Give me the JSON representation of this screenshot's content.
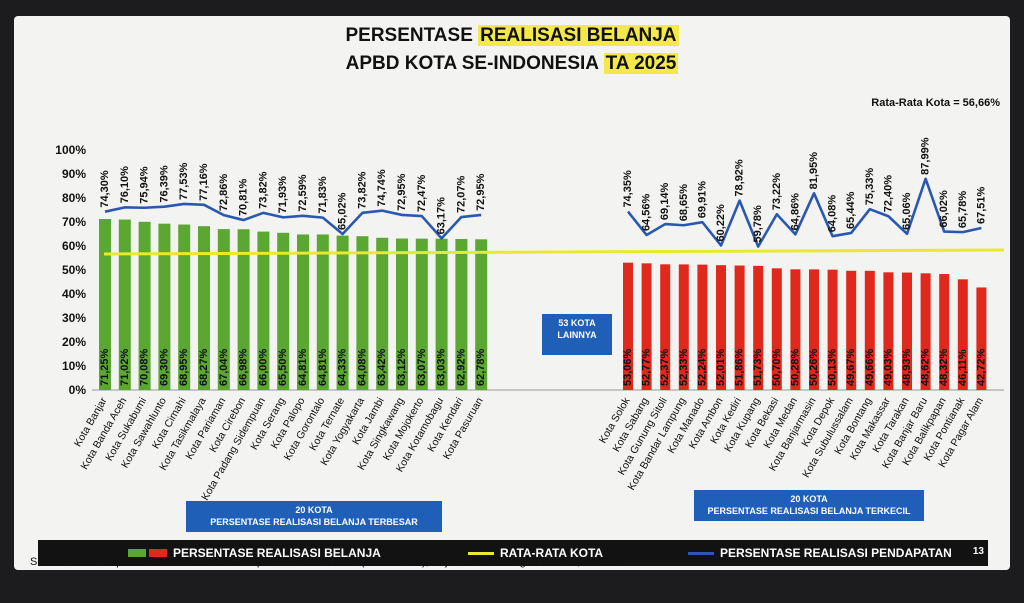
{
  "title": {
    "line1_a": "PERSENTASE ",
    "line1_b": "REALISASI BELANJA",
    "line2_a": "APBD KOTA SE-INDONESIA ",
    "line2_b": "TA 2025"
  },
  "average_note": "Rata-Rata Kota = 56,66%",
  "middle_label": {
    "line1": "53 KOTA",
    "line2": "LAINNYA"
  },
  "group_left_label": {
    "line1": "20 KOTA",
    "line2": "PERSENTASE REALISASI BELANJA TERBESAR"
  },
  "group_right_label": {
    "line1": "20 KOTA",
    "line2": "PERSENTASE REALISASI BELANJA TERKECIL"
  },
  "legend": {
    "bars": "PERSENTASE REALISASI BELANJA",
    "avg": "RATA-RATA KOTA",
    "line": "PERSENTASE REALISASI PENDAPATAN"
  },
  "page_number": "13",
  "source": "Sumber Data : Laporan 93 Pemkot untuk LRA per 17 Oktober 2025 (Data Diolah), Ditjen Bina Keuangan Daerah, TA 2025",
  "colors": {
    "green": "#5aa832",
    "red": "#e0281d",
    "line": "#2a58b0",
    "avg": "#e9e930",
    "box": "#1f5fb8"
  },
  "chart_data": {
    "type": "bar",
    "ylim": [
      0,
      100
    ],
    "yticks": [
      "0%",
      "10%",
      "20%",
      "30%",
      "40%",
      "50%",
      "60%",
      "70%",
      "80%",
      "90%",
      "100%"
    ],
    "average": 56.66,
    "top": {
      "categories": [
        "Kota Banjar",
        "Kota Banda Aceh",
        "Kota Sukabumi",
        "Kota Sawahlunto",
        "Kota Cimahi",
        "Kota Tasikmalaya",
        "Kota Pariaman",
        "Kota Cirebon",
        "Kota Padang Sidempuan",
        "Kota Serang",
        "Kota Palopo",
        "Kota Gorontalo",
        "Kota Ternate",
        "Kota Yogyakarta",
        "Kota Jambi",
        "Kota Singkawang",
        "Kota Mojokerto",
        "Kota Kotamobagu",
        "Kota Kendari",
        "Kota Pasuruan"
      ],
      "belanja": [
        71.25,
        71.02,
        70.08,
        69.3,
        68.95,
        68.27,
        67.04,
        66.98,
        66.0,
        65.5,
        64.81,
        64.81,
        64.33,
        64.08,
        63.42,
        63.12,
        63.07,
        63.03,
        62.92,
        62.78
      ],
      "belanja_labels": [
        "71,25%",
        "71,02%",
        "70,08%",
        "69,30%",
        "68,95%",
        "68,27%",
        "67,04%",
        "66,98%",
        "66,00%",
        "65,50%",
        "64,81%",
        "64,81%",
        "64,33%",
        "64,08%",
        "63,42%",
        "63,12%",
        "63,07%",
        "63,03%",
        "62,92%",
        "62,78%"
      ],
      "pendapatan": [
        74.3,
        76.1,
        75.94,
        76.39,
        77.53,
        77.16,
        72.86,
        70.81,
        73.82,
        71.93,
        72.59,
        71.83,
        65.02,
        73.82,
        74.74,
        72.95,
        72.47,
        63.17,
        72.07,
        72.95
      ],
      "pendapatan_labels": [
        "74,30%",
        "76,10%",
        "75,94%",
        "76,39%",
        "77,53%",
        "77,16%",
        "72,86%",
        "70,81%",
        "73,82%",
        "71,93%",
        "72,59%",
        "71,83%",
        "65,02%",
        "73,82%",
        "74,74%",
        "72,95%",
        "72,47%",
        "63,17%",
        "72,07%",
        "72,95%"
      ]
    },
    "bottom": {
      "categories": [
        "Kota Solok",
        "Kota Sabang",
        "Kota Gunung Sitoli",
        "Kota Bandar Lampung",
        "Kota Manado",
        "Kota Ambon",
        "Kota Kediri",
        "Kota Kupang",
        "Kota Bekasi",
        "Kota Medan",
        "Kota Banjarmasin",
        "Kota Depok",
        "Kota Subulussalam",
        "Kota Bontang",
        "Kota Makassar",
        "Kota Tarakan",
        "Kota Banjar Baru",
        "Kota Balikpapan",
        "Kota Pontianak",
        "Kota Pagar Alam"
      ],
      "belanja": [
        53.06,
        52.77,
        52.37,
        52.33,
        52.24,
        52.01,
        51.86,
        51.73,
        50.7,
        50.28,
        50.26,
        50.13,
        49.67,
        49.66,
        49.03,
        48.93,
        48.62,
        48.32,
        46.11,
        42.72
      ],
      "belanja_labels": [
        "53,06%",
        "52,77%",
        "52,37%",
        "52,33%",
        "52,24%",
        "52,01%",
        "51,86%",
        "51,73%",
        "50,70%",
        "50,28%",
        "50,26%",
        "50,13%",
        "49,67%",
        "49,66%",
        "49,03%",
        "48,93%",
        "48,62%",
        "48,32%",
        "46,11%",
        "42,72%"
      ],
      "pendapatan": [
        74.35,
        64.56,
        69.14,
        68.65,
        69.91,
        60.22,
        78.92,
        59.78,
        73.22,
        64.86,
        81.95,
        64.08,
        65.44,
        75.33,
        72.4,
        65.06,
        87.99,
        66.02,
        65.78,
        67.51
      ],
      "pendapatan_labels": [
        "74,35%",
        "64,56%",
        "69,14%",
        "68,65%",
        "69,91%",
        "60,22%",
        "78,92%",
        "59,78%",
        "73,22%",
        "64,86%",
        "81,95%",
        "64,08%",
        "65,44%",
        "75,33%",
        "72,40%",
        "65,06%",
        "87,99%",
        "66,02%",
        "65,78%",
        "67,51%"
      ]
    }
  }
}
